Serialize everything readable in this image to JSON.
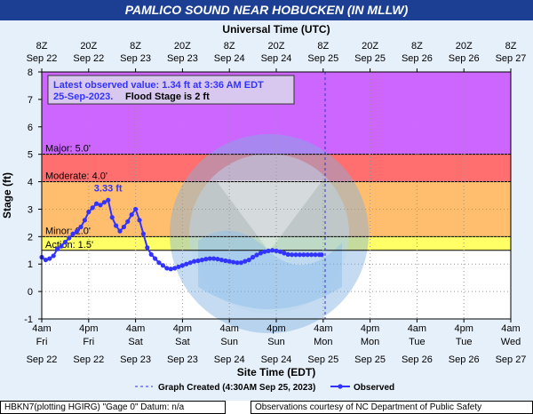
{
  "title": "PAMLICO SOUND NEAR HOBUCKEN (IN MLLW)",
  "footer": {
    "left": "HBKN7(plotting HGIRG) \"Gage 0\" Datum: n/a",
    "right": "Observations courtesy of NC Department of Public Safety"
  },
  "legend": {
    "created": "Graph Created (4:30AM Sep 25, 2023)",
    "observed": "Observed"
  },
  "colors": {
    "title_bar": "#1c3f94",
    "major": "#cc66ff",
    "moderate": "#ff6f6f",
    "flood": "#ffbe6e",
    "action": "#ffff66",
    "observed": "#3333ff"
  },
  "chart_data": {
    "type": "line",
    "top_axis_label": "Universal Time (UTC)",
    "xlabel": "Site Time (EDT)",
    "ylabel": "Stage (ft)",
    "ylim": [
      -1,
      8
    ],
    "yticks": [
      "-1",
      "0",
      "1",
      "2",
      "3",
      "4",
      "5",
      "6",
      "7",
      "8"
    ],
    "xlim_hours": [
      0,
      120
    ],
    "top_ticks": [
      {
        "h": 0,
        "l1": "8Z",
        "l2": "Sep 22"
      },
      {
        "h": 12,
        "l1": "20Z",
        "l2": "Sep 22"
      },
      {
        "h": 24,
        "l1": "8Z",
        "l2": "Sep 23"
      },
      {
        "h": 36,
        "l1": "20Z",
        "l2": "Sep 23"
      },
      {
        "h": 48,
        "l1": "8Z",
        "l2": "Sep 24"
      },
      {
        "h": 60,
        "l1": "20Z",
        "l2": "Sep 24"
      },
      {
        "h": 72,
        "l1": "8Z",
        "l2": "Sep 25"
      },
      {
        "h": 84,
        "l1": "20Z",
        "l2": "Sep 25"
      },
      {
        "h": 96,
        "l1": "8Z",
        "l2": "Sep 26"
      },
      {
        "h": 108,
        "l1": "20Z",
        "l2": "Sep 26"
      },
      {
        "h": 120,
        "l1": "8Z",
        "l2": "Sep 27"
      }
    ],
    "bottom_ticks": [
      {
        "h": 0,
        "l1": "4am",
        "l2": "Fri",
        "l3": "Sep 22"
      },
      {
        "h": 12,
        "l1": "4pm",
        "l2": "Fri",
        "l3": "Sep 22"
      },
      {
        "h": 24,
        "l1": "4am",
        "l2": "Sat",
        "l3": "Sep 23"
      },
      {
        "h": 36,
        "l1": "4pm",
        "l2": "Sat",
        "l3": "Sep 23"
      },
      {
        "h": 48,
        "l1": "4am",
        "l2": "Sun",
        "l3": "Sep 24"
      },
      {
        "h": 60,
        "l1": "4pm",
        "l2": "Sun",
        "l3": "Sep 24"
      },
      {
        "h": 72,
        "l1": "4am",
        "l2": "Mon",
        "l3": "Sep 25"
      },
      {
        "h": 84,
        "l1": "4pm",
        "l2": "Mon",
        "l3": "Sep 25"
      },
      {
        "h": 96,
        "l1": "4am",
        "l2": "Tue",
        "l3": "Sep 26"
      },
      {
        "h": 108,
        "l1": "4pm",
        "l2": "Tue",
        "l3": "Sep 26"
      },
      {
        "h": 120,
        "l1": "4am",
        "l2": "Wed",
        "l3": "Sep 27"
      }
    ],
    "flood_categories": [
      {
        "name": "Major",
        "label": "Major: 5.0'",
        "from": 5.0,
        "to": 8.0
      },
      {
        "name": "Moderate",
        "label": "Moderate: 4.0'",
        "from": 4.0,
        "to": 5.0
      },
      {
        "name": "Minor",
        "label": "Minor: 2.0'",
        "from": 2.0,
        "to": 4.0
      },
      {
        "name": "Action",
        "label": "Action: 1.5'",
        "from": 1.5,
        "to": 2.0
      }
    ],
    "annotation": {
      "line1": "Latest observed value: 1.34 ft at 3:36 AM EDT",
      "line2_bold": "25-Sep-2023.",
      "line2_rest": "Flood Stage is 2 ft"
    },
    "peak": {
      "label": "3.33 ft",
      "h": 17.0,
      "y": 3.33
    },
    "graph_created_h": 72.5,
    "series": [
      {
        "name": "Observed",
        "x": [
          0,
          1,
          2,
          3,
          4,
          5,
          6,
          7,
          8,
          9,
          10,
          11,
          12,
          13,
          14,
          15,
          16,
          17,
          18,
          19,
          20,
          21,
          22,
          23,
          24,
          25,
          26,
          27,
          28,
          29,
          30,
          31,
          32,
          33,
          34,
          35,
          36,
          37,
          38,
          39,
          40,
          41,
          42,
          43,
          44,
          45,
          46,
          47,
          48,
          49,
          50,
          51,
          52,
          53,
          54,
          55,
          56,
          57,
          58,
          59,
          60,
          61,
          62,
          63,
          64,
          65,
          66,
          67,
          68,
          69,
          70,
          71,
          71.6
        ],
        "y": [
          1.25,
          1.15,
          1.2,
          1.3,
          1.55,
          1.65,
          1.8,
          1.95,
          2.1,
          2.2,
          2.35,
          2.6,
          2.9,
          3.05,
          3.2,
          3.15,
          3.25,
          3.33,
          2.7,
          2.4,
          2.2,
          2.35,
          2.55,
          2.8,
          3.0,
          2.6,
          2.1,
          1.6,
          1.35,
          1.2,
          1.05,
          0.95,
          0.85,
          0.82,
          0.85,
          0.9,
          0.95,
          1.0,
          1.05,
          1.1,
          1.12,
          1.15,
          1.18,
          1.2,
          1.2,
          1.18,
          1.15,
          1.12,
          1.1,
          1.07,
          1.05,
          1.05,
          1.1,
          1.15,
          1.25,
          1.33,
          1.4,
          1.45,
          1.48,
          1.5,
          1.48,
          1.45,
          1.4,
          1.35,
          1.34,
          1.34,
          1.34,
          1.34,
          1.34,
          1.34,
          1.34,
          1.34,
          1.34
        ]
      }
    ]
  }
}
